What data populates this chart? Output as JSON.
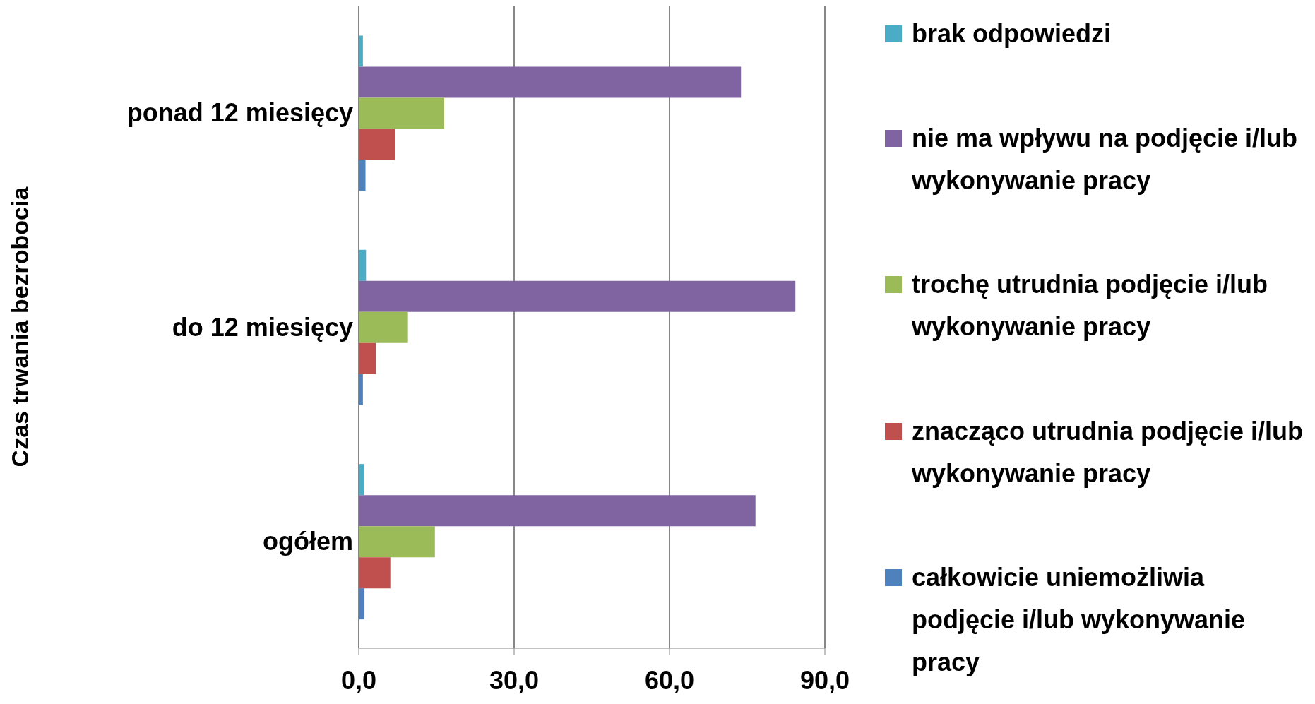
{
  "chart_data": {
    "type": "bar",
    "orientation": "horizontal",
    "ylabel": "Czas trwania bezrobocia",
    "categories": [
      "ponad 12 miesięcy",
      "do 12 miesięcy",
      "ogółem"
    ],
    "series": [
      {
        "name": "brak odpowiedzi",
        "color": "#4bacc6",
        "values": [
          0.8,
          1.4,
          1.0
        ]
      },
      {
        "name": "nie ma wpływu na podjęcie i/lub wykonywanie pracy",
        "color": "#8064a2",
        "values": [
          73.8,
          84.3,
          76.6
        ]
      },
      {
        "name": "trochę utrudnia podjęcie i/lub wykonywanie pracy",
        "color": "#9bbb59",
        "values": [
          16.5,
          9.5,
          14.7
        ]
      },
      {
        "name": "znacząco utrudnia podjęcie i/lub wykonywanie pracy",
        "color": "#c0504d",
        "values": [
          7.0,
          3.3,
          6.1
        ]
      },
      {
        "name": "całkowicie uniemożliwia podjęcie i/lub wykonywanie pracy",
        "color": "#4f81bd",
        "values": [
          1.3,
          0.8,
          1.1
        ]
      }
    ],
    "xlim": [
      0,
      90
    ],
    "xticks": [
      {
        "value": 0,
        "label": "0,0"
      },
      {
        "value": 30,
        "label": "30,0"
      },
      {
        "value": 60,
        "label": "60,0"
      },
      {
        "value": 90,
        "label": "90,0"
      }
    ],
    "grid": "x",
    "legend": "right"
  }
}
